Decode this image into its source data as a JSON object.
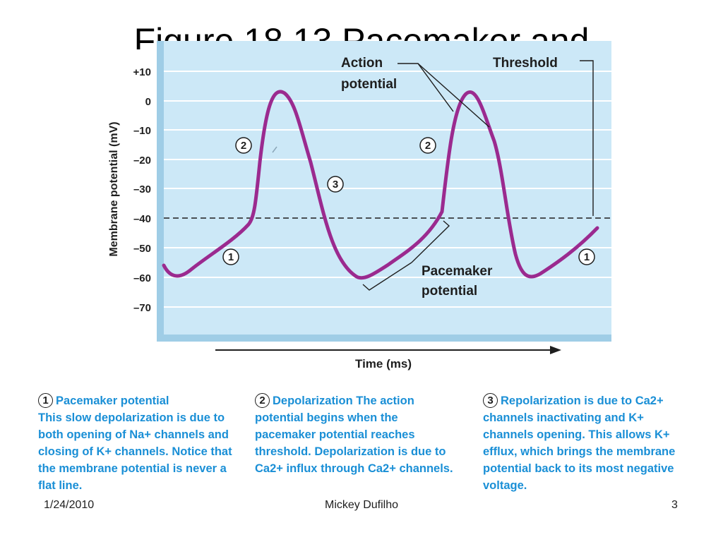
{
  "slide": {
    "title": "Figure 18.13 Pacemaker and"
  },
  "diagram": {
    "y_axis_label": "Membrane potential (mV)",
    "y_ticks": [
      "+10",
      "0",
      "–10",
      "–20",
      "–30",
      "–40",
      "–50",
      "–60",
      "–70"
    ],
    "x_axis_label": "Time (ms)",
    "labels": {
      "action_potential": [
        "Action",
        "potential"
      ],
      "threshold": "Threshold",
      "pacemaker_potential": [
        "Pacemaker",
        "potential"
      ]
    },
    "markers": [
      "1",
      "2",
      "3",
      "2",
      "1"
    ],
    "colors": {
      "background": "#cce8f7",
      "trace": "#9b2a8f",
      "axis": "#7ab8d8",
      "accent_text": "#1a8fd6"
    }
  },
  "captions": [
    {
      "number": "1",
      "term": "Pacemaker potential",
      "body": "This slow depolarization is due to both opening of Na+ channels and closing of K+ channels. Notice that the membrane potential is never a flat line."
    },
    {
      "number": "2",
      "term": "Depolarization",
      "body": "The action potential begins when the pacemaker potential reaches threshold. Depolarization is due to Ca2+ influx through Ca2+ channels."
    },
    {
      "number": "3",
      "term": "Repolarization",
      "body": "is due to Ca2+ channels inactivating and K+ channels opening. This allows K+ efflux, which brings the membrane potential back to its most negative voltage."
    }
  ],
  "footer": {
    "date": "1/24/2010",
    "author": "Mickey Dufilho",
    "page": "3"
  }
}
